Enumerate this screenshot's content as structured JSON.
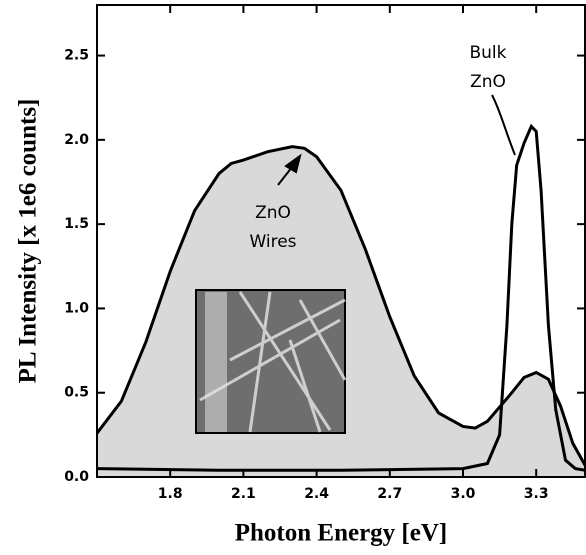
{
  "chart_data": {
    "type": "line",
    "xlabel": "Photon Energy  [eV]",
    "ylabel": "PL Intensity  [x 1e6 counts]",
    "xlim": [
      1.5,
      3.5
    ],
    "ylim": [
      0,
      2.8
    ],
    "xticks": [
      1.8,
      2.1,
      2.4,
      2.7,
      {
        "value": 3.0,
        "label": "3.0"
      },
      3.3
    ],
    "yticks": [
      {
        "value": 0,
        "label": "0.0"
      },
      0.5,
      {
        "value": 1,
        "label": "1.0"
      },
      1.5,
      {
        "value": 2,
        "label": "2.0"
      },
      2.5
    ],
    "series": [
      {
        "color": "#000000",
        "fill": "#d9d9d9",
        "x": [
          1.5,
          1.6,
          1.7,
          1.8,
          1.9,
          2.0,
          2.05,
          2.1,
          2.2,
          2.3,
          2.35,
          2.4,
          2.5,
          2.6,
          2.7,
          2.8,
          2.9,
          3.0,
          3.05,
          3.1,
          3.2,
          3.25,
          3.3,
          3.35,
          3.4,
          3.45,
          3.5
        ],
        "values": [
          0.26,
          0.45,
          0.8,
          1.22,
          1.58,
          1.8,
          1.86,
          1.88,
          1.93,
          1.96,
          1.95,
          1.9,
          1.7,
          1.35,
          0.95,
          0.6,
          0.38,
          0.3,
          0.29,
          0.33,
          0.5,
          0.59,
          0.62,
          0.58,
          0.42,
          0.2,
          0.07
        ]
      },
      {
        "color": "#000000",
        "x": [
          1.5,
          2.0,
          2.5,
          3.0,
          3.1,
          3.15,
          3.18,
          3.2,
          3.22,
          3.25,
          3.28,
          3.3,
          3.32,
          3.35,
          3.38,
          3.42,
          3.46,
          3.5
        ],
        "values": [
          0.05,
          0.04,
          0.04,
          0.05,
          0.08,
          0.25,
          0.9,
          1.5,
          1.85,
          1.98,
          2.08,
          2.05,
          1.7,
          0.9,
          0.4,
          0.1,
          0.05,
          0.04
        ]
      }
    ],
    "annotations": [
      {
        "lines": [
          "ZnO",
          "Wires"
        ]
      },
      {
        "lines": [
          "Bulk",
          "ZnO"
        ]
      }
    ]
  }
}
